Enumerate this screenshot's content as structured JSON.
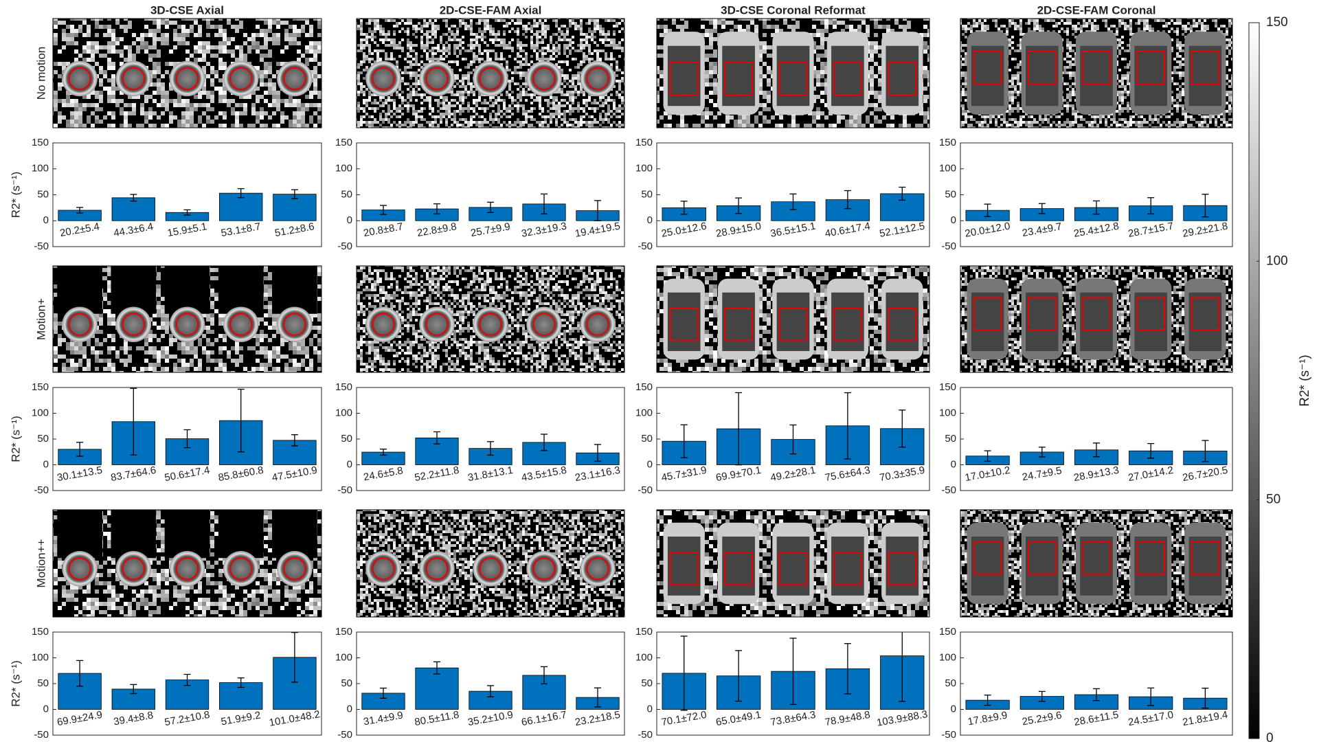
{
  "columns": [
    "3D-CSE Axial",
    "2D-CSE-FAM Axial",
    "3D-CSE Coronal Reformat",
    "2D-CSE-FAM Coronal"
  ],
  "rows": [
    "No motion",
    "Motion+",
    "Motion++"
  ],
  "chart_data": [
    {
      "type": "bar",
      "ylabel": "R2* (s⁻¹)",
      "values": [
        20.2,
        44.3,
        15.9,
        53.1,
        51.2
      ],
      "errors": [
        5.4,
        6.4,
        5.1,
        8.7,
        8.6
      ],
      "value_labels": [
        "20.2±5.4",
        "44.3±6.4",
        "15.9±5.1",
        "53.1±8.7",
        "51.2±8.6"
      ],
      "ylim": [
        -50,
        150
      ],
      "yticks": [
        -50,
        0,
        50,
        100,
        150
      ],
      "color": "#0072bd"
    },
    {
      "type": "bar",
      "values": [
        20.8,
        22.8,
        25.7,
        32.3,
        19.4
      ],
      "errors": [
        8.7,
        9.8,
        9.9,
        19.3,
        19.5
      ],
      "value_labels": [
        "20.8±8.7",
        "22.8±9.8",
        "25.7±9.9",
        "32.3±19.3",
        "19.4±19.5"
      ],
      "ylim": [
        -50,
        150
      ],
      "yticks": [
        -50,
        0,
        50,
        100,
        150
      ],
      "color": "#0072bd"
    },
    {
      "type": "bar",
      "values": [
        25.0,
        28.9,
        36.5,
        40.6,
        52.1
      ],
      "errors": [
        12.6,
        15.0,
        15.1,
        17.4,
        12.5
      ],
      "value_labels": [
        "25.0±12.6",
        "28.9±15.0",
        "36.5±15.1",
        "40.6±17.4",
        "52.1±12.5"
      ],
      "ylim": [
        -50,
        150
      ],
      "yticks": [
        -50,
        0,
        50,
        100,
        150
      ],
      "color": "#0072bd"
    },
    {
      "type": "bar",
      "values": [
        20.0,
        23.4,
        25.4,
        28.7,
        29.2
      ],
      "errors": [
        12.0,
        9.7,
        12.8,
        15.7,
        21.8
      ],
      "value_labels": [
        "20.0±12.0",
        "23.4±9.7",
        "25.4±12.8",
        "28.7±15.7",
        "29.2±21.8"
      ],
      "ylim": [
        -50,
        150
      ],
      "yticks": [
        -50,
        0,
        50,
        100,
        150
      ],
      "color": "#0072bd"
    },
    {
      "type": "bar",
      "ylabel": "R2* (s⁻¹)",
      "values": [
        30.1,
        83.7,
        50.6,
        85.8,
        47.5
      ],
      "errors": [
        13.5,
        64.6,
        17.4,
        60.8,
        10.9
      ],
      "value_labels": [
        "30.1±13.5",
        "83.7±64.6",
        "50.6±17.4",
        "85.8±60.8",
        "47.5±10.9"
      ],
      "ylim": [
        -50,
        150
      ],
      "yticks": [
        -50,
        0,
        50,
        100,
        150
      ],
      "color": "#0072bd"
    },
    {
      "type": "bar",
      "values": [
        24.6,
        52.2,
        31.8,
        43.5,
        23.1
      ],
      "errors": [
        5.8,
        11.8,
        13.1,
        15.8,
        16.3
      ],
      "value_labels": [
        "24.6±5.8",
        "52.2±11.8",
        "31.8±13.1",
        "43.5±15.8",
        "23.1±16.3"
      ],
      "ylim": [
        -50,
        150
      ],
      "yticks": [
        -50,
        0,
        50,
        100,
        150
      ],
      "color": "#0072bd"
    },
    {
      "type": "bar",
      "values": [
        45.7,
        69.9,
        49.2,
        75.6,
        70.3
      ],
      "errors": [
        31.9,
        70.1,
        28.1,
        64.3,
        35.9
      ],
      "value_labels": [
        "45.7±31.9",
        "69.9±70.1",
        "49.2±28.1",
        "75.6±64.3",
        "70.3±35.9"
      ],
      "ylim": [
        -50,
        150
      ],
      "yticks": [
        -50,
        0,
        50,
        100,
        150
      ],
      "color": "#0072bd"
    },
    {
      "type": "bar",
      "values": [
        17.0,
        24.7,
        28.9,
        27.0,
        26.7
      ],
      "errors": [
        10.2,
        9.5,
        13.3,
        14.2,
        20.5
      ],
      "value_labels": [
        "17.0±10.2",
        "24.7±9.5",
        "28.9±13.3",
        "27.0±14.2",
        "26.7±20.5"
      ],
      "ylim": [
        -50,
        150
      ],
      "yticks": [
        -50,
        0,
        50,
        100,
        150
      ],
      "color": "#0072bd"
    },
    {
      "type": "bar",
      "ylabel": "R2* (s⁻¹)",
      "values": [
        69.9,
        39.4,
        57.2,
        51.9,
        101.0
      ],
      "errors": [
        24.9,
        8.8,
        10.8,
        9.2,
        48.2
      ],
      "value_labels": [
        "69.9±24.9",
        "39.4±8.8",
        "57.2±10.8",
        "51.9±9.2",
        "101.0±48.2"
      ],
      "ylim": [
        -50,
        150
      ],
      "yticks": [
        -50,
        0,
        50,
        100,
        150
      ],
      "color": "#0072bd"
    },
    {
      "type": "bar",
      "values": [
        31.4,
        80.5,
        35.2,
        66.1,
        23.2
      ],
      "errors": [
        9.9,
        11.8,
        10.9,
        16.7,
        18.5
      ],
      "value_labels": [
        "31.4±9.9",
        "80.5±11.8",
        "35.2±10.9",
        "66.1±16.7",
        "23.2±18.5"
      ],
      "ylim": [
        -50,
        150
      ],
      "yticks": [
        -50,
        0,
        50,
        100,
        150
      ],
      "color": "#0072bd"
    },
    {
      "type": "bar",
      "values": [
        70.1,
        65.0,
        73.8,
        78.9,
        103.9
      ],
      "errors": [
        72.0,
        49.1,
        64.3,
        48.8,
        88.3
      ],
      "value_labels": [
        "70.1±72.0",
        "65.0±49.1",
        "73.8±64.3",
        "78.9±48.8",
        "103.9±88.3"
      ],
      "ylim": [
        -50,
        150
      ],
      "yticks": [
        -50,
        0,
        50,
        100,
        150
      ],
      "color": "#0072bd"
    },
    {
      "type": "bar",
      "values": [
        17.8,
        25.2,
        28.6,
        24.5,
        21.8
      ],
      "errors": [
        9.9,
        9.6,
        11.5,
        17.0,
        19.4
      ],
      "value_labels": [
        "17.8±9.9",
        "25.2±9.6",
        "28.6±11.5",
        "24.5±17.0",
        "21.8±19.4"
      ],
      "ylim": [
        -50,
        150
      ],
      "yticks": [
        -50,
        0,
        50,
        100,
        150
      ],
      "color": "#0072bd"
    },
    {
      "type": "colorbar",
      "ylabel": "R2* (s⁻¹)",
      "ylim": [
        0,
        150
      ],
      "yticks": [
        0,
        50,
        100,
        150
      ],
      "colormap": "gray"
    }
  ]
}
